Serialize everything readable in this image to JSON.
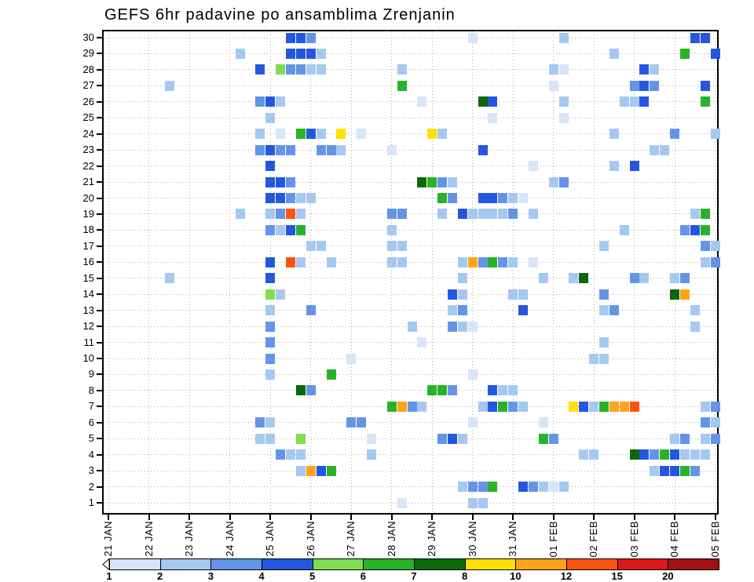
{
  "chart_data": {
    "type": "heatmap",
    "title": "GEFS 6hr padavine po ansamblima Zrenjanin",
    "x_tick_labels": [
      "21 JAN",
      "22 JAN",
      "23 JAN",
      "24 JAN",
      "25 JAN",
      "26 JAN",
      "27 JAN",
      "28 JAN",
      "29 JAN",
      "30 JAN",
      "31 JAN",
      "01 FEB",
      "02 FEB",
      "03 FEB",
      "04 FEB",
      "05 FEB"
    ],
    "y_tick_labels": [
      "30",
      "29",
      "28",
      "27",
      "26",
      "25",
      "24",
      "23",
      "22",
      "21",
      "20",
      "19",
      "18",
      "17",
      "16",
      "15",
      "14",
      "13",
      "12",
      "11",
      "10",
      "9",
      "8",
      "7",
      "6",
      "5",
      "4",
      "3",
      "2",
      "1"
    ],
    "x_steps_per_day": 4,
    "x_total_steps": 61,
    "colorbar_left_arrow_color": "#ffffff",
    "levels": [
      {
        "label": "1",
        "color": "#d6e5f7"
      },
      {
        "label": "2",
        "color": "#a6c8f0"
      },
      {
        "label": "3",
        "color": "#6494e6"
      },
      {
        "label": "4",
        "color": "#2457e0"
      },
      {
        "label": "5",
        "color": "#80dd50"
      },
      {
        "label": "6",
        "color": "#28b228"
      },
      {
        "label": "7",
        "color": "#0c660c"
      },
      {
        "label": "8",
        "color": "#ffe000"
      },
      {
        "label": "10",
        "color": "#ffa318"
      },
      {
        "label": "12",
        "color": "#fc5310"
      },
      {
        "label": "15",
        "color": "#dc1717"
      },
      {
        "label": "20",
        "color": "#a01212"
      }
    ],
    "cells_encoding": "[six_hour_step_from_21JAN00, ensemble_member, level_index]",
    "cells": [
      [
        18,
        30,
        3
      ],
      [
        19,
        30,
        3
      ],
      [
        20,
        30,
        2
      ],
      [
        36,
        30,
        0
      ],
      [
        45,
        30,
        1
      ],
      [
        58,
        30,
        3
      ],
      [
        59,
        30,
        3
      ],
      [
        13,
        29,
        1
      ],
      [
        18,
        29,
        3
      ],
      [
        19,
        29,
        3
      ],
      [
        20,
        29,
        3
      ],
      [
        21,
        29,
        1
      ],
      [
        50,
        29,
        1
      ],
      [
        57,
        29,
        5
      ],
      [
        60,
        29,
        3
      ],
      [
        15,
        28,
        3
      ],
      [
        17,
        28,
        4
      ],
      [
        18,
        28,
        2
      ],
      [
        19,
        28,
        2
      ],
      [
        20,
        28,
        1
      ],
      [
        21,
        28,
        1
      ],
      [
        29,
        28,
        1
      ],
      [
        44,
        28,
        1
      ],
      [
        45,
        28,
        0
      ],
      [
        53,
        28,
        3
      ],
      [
        54,
        28,
        1
      ],
      [
        6,
        27,
        1
      ],
      [
        29,
        27,
        5
      ],
      [
        44,
        27,
        0
      ],
      [
        52,
        27,
        2
      ],
      [
        53,
        27,
        3
      ],
      [
        54,
        27,
        2
      ],
      [
        59,
        27,
        3
      ],
      [
        15,
        26,
        2
      ],
      [
        16,
        26,
        3
      ],
      [
        17,
        26,
        1
      ],
      [
        31,
        26,
        0
      ],
      [
        37,
        26,
        6
      ],
      [
        38,
        26,
        3
      ],
      [
        45,
        26,
        1
      ],
      [
        51,
        26,
        1
      ],
      [
        52,
        26,
        1
      ],
      [
        53,
        26,
        3
      ],
      [
        59,
        26,
        5
      ],
      [
        16,
        25,
        1
      ],
      [
        38,
        25,
        0
      ],
      [
        45,
        25,
        0
      ],
      [
        15,
        24,
        1
      ],
      [
        17,
        24,
        0
      ],
      [
        19,
        24,
        5
      ],
      [
        20,
        24,
        3
      ],
      [
        21,
        24,
        1
      ],
      [
        23,
        24,
        7
      ],
      [
        25,
        24,
        0
      ],
      [
        32,
        24,
        7
      ],
      [
        33,
        24,
        1
      ],
      [
        50,
        24,
        1
      ],
      [
        56,
        24,
        2
      ],
      [
        60,
        24,
        1
      ],
      [
        15,
        23,
        2
      ],
      [
        16,
        23,
        3
      ],
      [
        17,
        23,
        2
      ],
      [
        18,
        23,
        2
      ],
      [
        21,
        23,
        2
      ],
      [
        22,
        23,
        2
      ],
      [
        23,
        23,
        1
      ],
      [
        28,
        23,
        0
      ],
      [
        37,
        23,
        3
      ],
      [
        54,
        23,
        1
      ],
      [
        55,
        23,
        1
      ],
      [
        16,
        22,
        3
      ],
      [
        42,
        22,
        0
      ],
      [
        50,
        22,
        1
      ],
      [
        52,
        22,
        3
      ],
      [
        16,
        21,
        3
      ],
      [
        17,
        21,
        3
      ],
      [
        18,
        21,
        2
      ],
      [
        31,
        21,
        6
      ],
      [
        32,
        21,
        5
      ],
      [
        33,
        21,
        2
      ],
      [
        34,
        21,
        1
      ],
      [
        44,
        21,
        1
      ],
      [
        45,
        21,
        2
      ],
      [
        16,
        20,
        3
      ],
      [
        17,
        20,
        3
      ],
      [
        18,
        20,
        2
      ],
      [
        19,
        20,
        1
      ],
      [
        20,
        20,
        1
      ],
      [
        33,
        20,
        5
      ],
      [
        34,
        20,
        2
      ],
      [
        37,
        20,
        3
      ],
      [
        38,
        20,
        3
      ],
      [
        39,
        20,
        2
      ],
      [
        40,
        20,
        1
      ],
      [
        41,
        20,
        0
      ],
      [
        13,
        19,
        1
      ],
      [
        16,
        19,
        1
      ],
      [
        17,
        19,
        2
      ],
      [
        18,
        19,
        9
      ],
      [
        19,
        19,
        1
      ],
      [
        28,
        19,
        2
      ],
      [
        29,
        19,
        2
      ],
      [
        33,
        19,
        1
      ],
      [
        35,
        19,
        3
      ],
      [
        36,
        19,
        1
      ],
      [
        37,
        19,
        1
      ],
      [
        38,
        19,
        1
      ],
      [
        39,
        19,
        1
      ],
      [
        40,
        19,
        2
      ],
      [
        42,
        19,
        1
      ],
      [
        58,
        19,
        1
      ],
      [
        59,
        19,
        5
      ],
      [
        16,
        18,
        2
      ],
      [
        17,
        18,
        1
      ],
      [
        18,
        18,
        3
      ],
      [
        19,
        18,
        5
      ],
      [
        28,
        18,
        1
      ],
      [
        51,
        18,
        1
      ],
      [
        57,
        18,
        2
      ],
      [
        58,
        18,
        3
      ],
      [
        59,
        18,
        5
      ],
      [
        20,
        17,
        1
      ],
      [
        21,
        17,
        1
      ],
      [
        28,
        17,
        1
      ],
      [
        29,
        17,
        1
      ],
      [
        49,
        17,
        1
      ],
      [
        59,
        17,
        2
      ],
      [
        60,
        17,
        1
      ],
      [
        16,
        16,
        3
      ],
      [
        18,
        16,
        9
      ],
      [
        19,
        16,
        1
      ],
      [
        22,
        16,
        1
      ],
      [
        28,
        16,
        1
      ],
      [
        29,
        16,
        1
      ],
      [
        35,
        16,
        1
      ],
      [
        36,
        16,
        8
      ],
      [
        37,
        16,
        2
      ],
      [
        38,
        16,
        5
      ],
      [
        39,
        16,
        2
      ],
      [
        40,
        16,
        1
      ],
      [
        42,
        16,
        0
      ],
      [
        59,
        16,
        1
      ],
      [
        60,
        16,
        2
      ],
      [
        6,
        15,
        1
      ],
      [
        16,
        15,
        3
      ],
      [
        35,
        15,
        1
      ],
      [
        43,
        15,
        1
      ],
      [
        46,
        15,
        1
      ],
      [
        47,
        15,
        6
      ],
      [
        52,
        15,
        2
      ],
      [
        53,
        15,
        1
      ],
      [
        56,
        15,
        1
      ],
      [
        57,
        15,
        2
      ],
      [
        16,
        14,
        4
      ],
      [
        17,
        14,
        1
      ],
      [
        34,
        14,
        3
      ],
      [
        35,
        14,
        1
      ],
      [
        40,
        14,
        1
      ],
      [
        41,
        14,
        1
      ],
      [
        49,
        14,
        2
      ],
      [
        56,
        14,
        6
      ],
      [
        57,
        14,
        8
      ],
      [
        16,
        13,
        1
      ],
      [
        20,
        13,
        2
      ],
      [
        34,
        13,
        1
      ],
      [
        35,
        13,
        2
      ],
      [
        41,
        13,
        3
      ],
      [
        49,
        13,
        1
      ],
      [
        50,
        13,
        2
      ],
      [
        58,
        13,
        1
      ],
      [
        16,
        12,
        2
      ],
      [
        30,
        12,
        1
      ],
      [
        34,
        12,
        2
      ],
      [
        35,
        12,
        1
      ],
      [
        36,
        12,
        0
      ],
      [
        58,
        12,
        1
      ],
      [
        16,
        11,
        2
      ],
      [
        31,
        11,
        0
      ],
      [
        49,
        11,
        1
      ],
      [
        16,
        10,
        2
      ],
      [
        24,
        10,
        0
      ],
      [
        48,
        10,
        1
      ],
      [
        49,
        10,
        1
      ],
      [
        16,
        9,
        1
      ],
      [
        22,
        9,
        5
      ],
      [
        36,
        9,
        0
      ],
      [
        19,
        8,
        6
      ],
      [
        20,
        8,
        2
      ],
      [
        32,
        8,
        5
      ],
      [
        33,
        8,
        5
      ],
      [
        34,
        8,
        2
      ],
      [
        38,
        8,
        3
      ],
      [
        39,
        8,
        1
      ],
      [
        40,
        8,
        1
      ],
      [
        28,
        7,
        5
      ],
      [
        29,
        7,
        8
      ],
      [
        30,
        7,
        2
      ],
      [
        31,
        7,
        1
      ],
      [
        37,
        7,
        1
      ],
      [
        38,
        7,
        3
      ],
      [
        39,
        7,
        5
      ],
      [
        40,
        7,
        2
      ],
      [
        41,
        7,
        1
      ],
      [
        46,
        7,
        7
      ],
      [
        47,
        7,
        3
      ],
      [
        48,
        7,
        1
      ],
      [
        49,
        7,
        5
      ],
      [
        50,
        7,
        8
      ],
      [
        51,
        7,
        8
      ],
      [
        52,
        7,
        9
      ],
      [
        59,
        7,
        1
      ],
      [
        60,
        7,
        2
      ],
      [
        15,
        6,
        2
      ],
      [
        16,
        6,
        1
      ],
      [
        24,
        6,
        2
      ],
      [
        25,
        6,
        2
      ],
      [
        36,
        6,
        0
      ],
      [
        43,
        6,
        0
      ],
      [
        59,
        6,
        2
      ],
      [
        60,
        6,
        1
      ],
      [
        15,
        5,
        1
      ],
      [
        16,
        5,
        1
      ],
      [
        19,
        5,
        4
      ],
      [
        26,
        5,
        0
      ],
      [
        33,
        5,
        2
      ],
      [
        34,
        5,
        3
      ],
      [
        35,
        5,
        1
      ],
      [
        43,
        5,
        5
      ],
      [
        44,
        5,
        2
      ],
      [
        56,
        5,
        1
      ],
      [
        57,
        5,
        2
      ],
      [
        59,
        5,
        1
      ],
      [
        60,
        5,
        2
      ],
      [
        17,
        4,
        2
      ],
      [
        18,
        4,
        1
      ],
      [
        19,
        4,
        1
      ],
      [
        26,
        4,
        1
      ],
      [
        47,
        4,
        1
      ],
      [
        48,
        4,
        1
      ],
      [
        52,
        4,
        6
      ],
      [
        53,
        4,
        3
      ],
      [
        54,
        4,
        2
      ],
      [
        55,
        4,
        5
      ],
      [
        56,
        4,
        3
      ],
      [
        57,
        4,
        1
      ],
      [
        58,
        4,
        1
      ],
      [
        59,
        4,
        1
      ],
      [
        19,
        3,
        1
      ],
      [
        20,
        3,
        8
      ],
      [
        21,
        3,
        3
      ],
      [
        22,
        3,
        5
      ],
      [
        54,
        3,
        1
      ],
      [
        55,
        3,
        3
      ],
      [
        56,
        3,
        3
      ],
      [
        57,
        3,
        5
      ],
      [
        58,
        3,
        2
      ],
      [
        35,
        2,
        1
      ],
      [
        36,
        2,
        2
      ],
      [
        37,
        2,
        2
      ],
      [
        38,
        2,
        5
      ],
      [
        41,
        2,
        3
      ],
      [
        42,
        2,
        2
      ],
      [
        43,
        2,
        1
      ],
      [
        44,
        2,
        0
      ],
      [
        45,
        2,
        1
      ],
      [
        29,
        1,
        0
      ],
      [
        36,
        1,
        1
      ],
      [
        37,
        1,
        1
      ]
    ]
  }
}
